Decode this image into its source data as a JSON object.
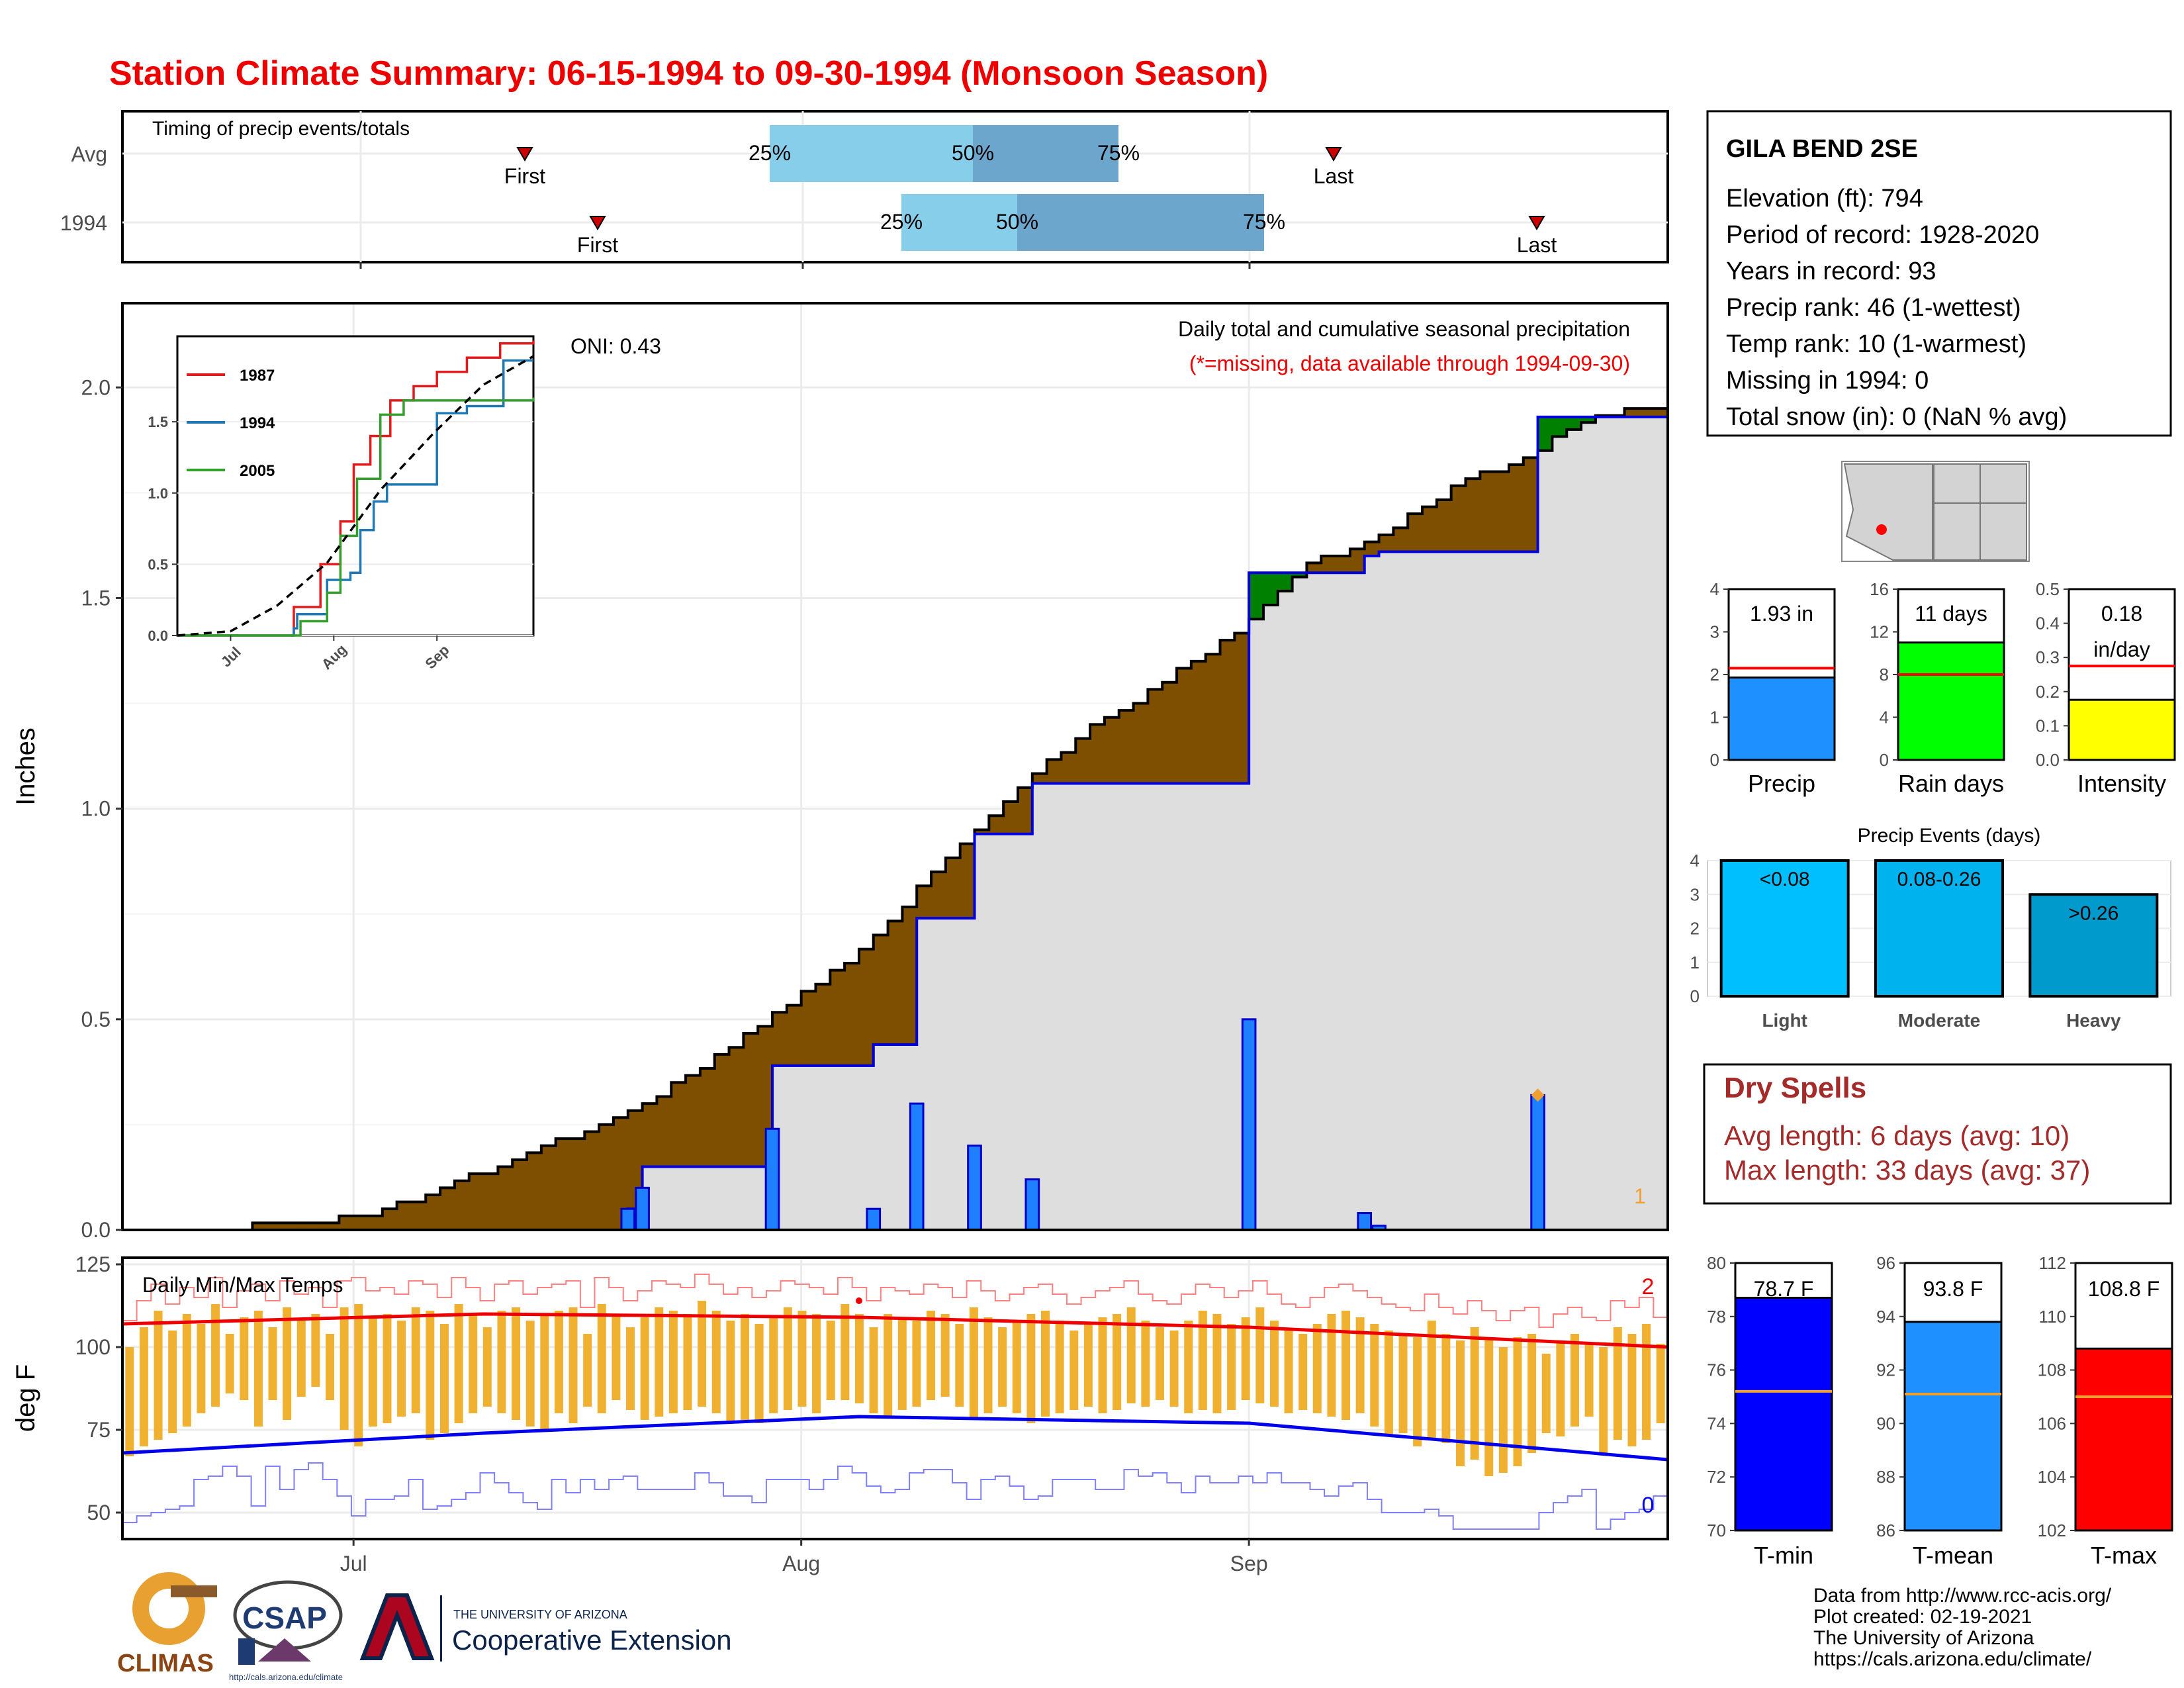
{
  "page": {
    "title": "Station Climate Summary: 06-15-1994 to 09-30-1994 (Monsoon Season)"
  },
  "colors": {
    "title": "#ee0000",
    "brown": "#7f4f00",
    "green": "#008000",
    "bar_blue": "#1e7fff",
    "gray_fill": "#dedede",
    "orange": "#f0b030",
    "light_blue": "#87ceeb",
    "mid_blue": "#6ca6cd",
    "dry_red": "#a52a2a"
  },
  "timing": {
    "label": "Timing of precip events/totals",
    "rows": [
      {
        "label": "Avg",
        "first": "First",
        "p25": "25%",
        "p50": "50%",
        "p75": "75%",
        "last": "Last"
      },
      {
        "label": "1994",
        "first": "First",
        "p25": "25%",
        "p50": "50%",
        "p75": "75%",
        "last": "Last"
      }
    ]
  },
  "station": {
    "name": "GILA BEND 2SE",
    "lines": [
      "Elevation (ft): 794",
      "Period of record: 1928-2020",
      "Years in record: 93",
      "Precip rank: 46 (1-wettest)",
      "Temp rank: 10 (1-warmest)",
      "Missing in 1994: 0",
      "Total snow (in): 0 (NaN % avg)"
    ]
  },
  "main": {
    "ylabel": "Inches",
    "oni": "ONI: 0.43",
    "caption": "Daily total and cumulative seasonal precipitation",
    "missing_note": "(*=missing, data available through 1994-09-30)",
    "missing_count": "1",
    "y_ticks": [
      "0.0",
      "0.5",
      "1.0",
      "1.5",
      "2.0"
    ]
  },
  "inset": {
    "legend": [
      "1987",
      "1994",
      "2005"
    ],
    "y_ticks": [
      "0.0",
      "0.5",
      "1.0",
      "1.5"
    ],
    "x_ticks": [
      "Jul",
      "Aug",
      "Sep"
    ]
  },
  "temps": {
    "label": "Daily Min/Max Temps",
    "ylabel": "deg F",
    "count_high": "2",
    "count_low": "0",
    "y_ticks": [
      "50",
      "75",
      "100",
      "125"
    ],
    "x_ticks": [
      "Jul",
      "Aug",
      "Sep"
    ]
  },
  "summary_bars": [
    {
      "name": "Precip",
      "value_label": "1.93 in",
      "value": 1.93,
      "avg": 2.15,
      "ticks": [
        "0",
        "1",
        "2",
        "3",
        "4"
      ],
      "color": "#1e90ff"
    },
    {
      "name": "Rain days",
      "value_label": "11 days",
      "value": 11,
      "avg": 8,
      "ticks": [
        "0",
        "4",
        "8",
        "12",
        "16"
      ],
      "color": "#00ff00"
    },
    {
      "name": "Intensity",
      "value_label": "0.18",
      "value_label2": "in/day",
      "value": 0.176,
      "avg": 0.275,
      "ticks": [
        "0.0",
        "0.1",
        "0.2",
        "0.3",
        "0.4",
        "0.5"
      ],
      "color": "#ffff00"
    }
  ],
  "events": {
    "title": "Precip Events (days)",
    "ticks": [
      "0",
      "1",
      "2",
      "3",
      "4"
    ],
    "bars": [
      {
        "label": "<0.08",
        "name": "Light",
        "value": 4,
        "color": "#00bfff"
      },
      {
        "label": "0.08-0.26",
        "name": "Moderate",
        "value": 4,
        "color": "#00b2ee"
      },
      {
        "label": ">0.26",
        "name": "Heavy",
        "value": 3,
        "color": "#009acd"
      }
    ]
  },
  "dry_spells": {
    "title": "Dry Spells",
    "avg_line": "Avg length: 6 days (avg: 10)",
    "max_line": "Max length: 33 days (avg: 37)"
  },
  "temp_bars": [
    {
      "name": "T-min",
      "value_label": "78.7 F",
      "value": 78.7,
      "avg": 75.2,
      "ticks": [
        "70",
        "72",
        "74",
        "76",
        "78",
        "80"
      ],
      "range": [
        70,
        80
      ],
      "color": "#0000ff"
    },
    {
      "name": "T-mean",
      "value_label": "93.8 F",
      "value": 93.8,
      "avg": 91.1,
      "ticks": [
        "86",
        "88",
        "90",
        "92",
        "94",
        "96"
      ],
      "range": [
        86,
        96
      ],
      "color": "#1e90ff"
    },
    {
      "name": "T-max",
      "value_label": "108.8 F",
      "value": 108.8,
      "avg": 107.0,
      "ticks": [
        "102",
        "104",
        "106",
        "108",
        "110",
        "112"
      ],
      "range": [
        102,
        112
      ],
      "color": "#ff0000"
    }
  ],
  "logos": {
    "climas": "CLIMAS",
    "csap": "CSAP",
    "csap_url": "http://cals.arizona.edu/climate",
    "ua_small": "THE UNIVERSITY OF ARIZONA",
    "ua_big": "Cooperative Extension"
  },
  "footer": {
    "lines": [
      "Data from http://www.rcc-acis.org/",
      "Plot created: 02-19-2021",
      "The University of Arizona",
      "https://cals.arizona.edu/climate/"
    ]
  },
  "chart_data": [
    {
      "type": "line",
      "title": "Daily total and cumulative seasonal precipitation",
      "ylabel": "Inches",
      "xlim": [
        "1994-06-15",
        "1994-09-30"
      ],
      "ylim": [
        0,
        2.2
      ],
      "grid": true,
      "series": [
        {
          "name": "1994 daily precip",
          "kind": "bar",
          "x": [
            "1994-07-20",
            "1994-07-21",
            "1994-07-30",
            "1994-08-06",
            "1994-08-09",
            "1994-08-13",
            "1994-08-17",
            "1994-09-01",
            "1994-09-09",
            "1994-09-10",
            "1994-09-21"
          ],
          "values": [
            0.05,
            0.1,
            0.24,
            0.05,
            0.3,
            0.2,
            0.12,
            0.5,
            0.04,
            0.01,
            0.32
          ]
        },
        {
          "name": "1994 cumulative",
          "x": [
            "1994-06-15",
            "1994-07-20",
            "1994-07-21",
            "1994-07-30",
            "1994-08-06",
            "1994-08-09",
            "1994-08-13",
            "1994-08-17",
            "1994-09-01",
            "1994-09-09",
            "1994-09-10",
            "1994-09-21",
            "1994-09-30"
          ],
          "values": [
            0,
            0.05,
            0.15,
            0.39,
            0.44,
            0.74,
            0.94,
            1.06,
            1.56,
            1.6,
            1.61,
            1.93,
            1.93
          ]
        },
        {
          "name": "Average cumulative",
          "x": [
            "1994-06-15",
            "1994-06-25",
            "1994-07-01",
            "1994-07-05",
            "1994-07-10",
            "1994-07-15",
            "1994-07-20",
            "1994-07-25",
            "1994-07-30",
            "1994-08-05",
            "1994-08-10",
            "1994-08-15",
            "1994-08-20",
            "1994-08-25",
            "1994-08-31",
            "1994-09-05",
            "1994-09-10",
            "1994-09-15",
            "1994-09-20",
            "1994-09-25",
            "1994-09-30"
          ],
          "values": [
            0,
            0.01,
            0.03,
            0.07,
            0.14,
            0.21,
            0.28,
            0.39,
            0.51,
            0.66,
            0.85,
            1.02,
            1.17,
            1.28,
            1.42,
            1.58,
            1.65,
            1.76,
            1.84,
            1.93,
            1.96
          ]
        }
      ],
      "annotations": [
        "ONI: 0.43",
        "(*=missing, data available through 1994-09-30)",
        "1"
      ]
    },
    {
      "type": "line",
      "title": "",
      "legend": "top-left",
      "x_ticks": [
        "Jul",
        "Aug",
        "Sep"
      ],
      "ylim": [
        0,
        2.1
      ],
      "series": [
        {
          "name": "1987",
          "x": [
            "1994-06-15",
            "1994-07-20",
            "1994-07-28",
            "1994-08-03",
            "1994-08-07",
            "1994-08-12",
            "1994-08-18",
            "1994-08-25",
            "1994-09-01",
            "1994-09-10",
            "1994-09-20",
            "1994-09-30"
          ],
          "values": [
            0,
            0.2,
            0.5,
            0.8,
            1.2,
            1.4,
            1.65,
            1.75,
            1.85,
            1.95,
            2.05,
            2.07
          ]
        },
        {
          "name": "1994",
          "x": [
            "1994-06-15",
            "1994-07-20",
            "1994-07-21",
            "1994-07-30",
            "1994-08-06",
            "1994-08-09",
            "1994-08-13",
            "1994-08-17",
            "1994-09-01",
            "1994-09-10",
            "1994-09-21",
            "1994-09-30"
          ],
          "values": [
            0,
            0.05,
            0.15,
            0.39,
            0.44,
            0.74,
            0.94,
            1.06,
            1.56,
            1.61,
            1.93,
            1.93
          ]
        },
        {
          "name": "2005",
          "x": [
            "1994-06-15",
            "1994-07-22",
            "1994-07-30",
            "1994-08-03",
            "1994-08-08",
            "1994-08-15",
            "1994-08-22",
            "1994-09-30"
          ],
          "values": [
            0,
            0.1,
            0.3,
            0.7,
            1.1,
            1.55,
            1.65,
            1.67
          ]
        },
        {
          "name": "Average",
          "x": [
            "1994-06-15",
            "1994-07-01",
            "1994-07-15",
            "1994-07-30",
            "1994-08-15",
            "1994-08-31",
            "1994-09-15",
            "1994-09-30"
          ],
          "values": [
            0,
            0.03,
            0.21,
            0.51,
            1.02,
            1.42,
            1.76,
            1.96
          ]
        }
      ]
    },
    {
      "type": "bar",
      "title": "Daily Min/Max Temps",
      "ylabel": "deg F",
      "ylim": [
        42,
        127
      ],
      "series": [
        {
          "name": "Daily max",
          "values": [
            100,
            106,
            111,
            105,
            110,
            107,
            113,
            104,
            109,
            111,
            106,
            112,
            108,
            110,
            104,
            112,
            113,
            109,
            110,
            108,
            112,
            111,
            107,
            113,
            110,
            106,
            111,
            112,
            108,
            110,
            111,
            112,
            104,
            113,
            110,
            106,
            109,
            112,
            111,
            110,
            114,
            111,
            108,
            110,
            107,
            109,
            112,
            111,
            110,
            108,
            113,
            110,
            106,
            110,
            109,
            108,
            111,
            110,
            107,
            112,
            109,
            106,
            108,
            110,
            111,
            108,
            105,
            107,
            109,
            110,
            112,
            108,
            106,
            105,
            108,
            111,
            110,
            107,
            109,
            112,
            108,
            105,
            104,
            107,
            110,
            111,
            109,
            107,
            105,
            104,
            103,
            108,
            104,
            102,
            106,
            103,
            100,
            103,
            104,
            98,
            102,
            104,
            101,
            100,
            106,
            104,
            107,
            101
          ]
        },
        {
          "name": "Daily min",
          "values": [
            67,
            70,
            72,
            74,
            76,
            80,
            82,
            86,
            84,
            76,
            84,
            78,
            85,
            88,
            84,
            75,
            70,
            76,
            77,
            79,
            80,
            72,
            74,
            77,
            80,
            82,
            80,
            78,
            76,
            75,
            80,
            77,
            82,
            80,
            84,
            81,
            78,
            79,
            80,
            81,
            82,
            80,
            77,
            78,
            77,
            80,
            81,
            82,
            80,
            84,
            84,
            83,
            80,
            79,
            81,
            82,
            84,
            85,
            82,
            78,
            80,
            82,
            80,
            77,
            79,
            80,
            81,
            82,
            80,
            81,
            83,
            82,
            84,
            82,
            80,
            81,
            80,
            81,
            84,
            83,
            82,
            80,
            81,
            80,
            79,
            78,
            80,
            76,
            73,
            74,
            70,
            72,
            71,
            64,
            66,
            61,
            62,
            64,
            68,
            74,
            73,
            76,
            79,
            68,
            72,
            70,
            72,
            77
          ]
        },
        {
          "name": "Avg max",
          "x": [
            "1994-06-15",
            "1994-07-10",
            "1994-08-05",
            "1994-09-01",
            "1994-09-30"
          ],
          "values": [
            107,
            110,
            109,
            106,
            100
          ]
        },
        {
          "name": "Avg min",
          "x": [
            "1994-06-15",
            "1994-07-10",
            "1994-08-05",
            "1994-09-01",
            "1994-09-30"
          ],
          "values": [
            68,
            74,
            79,
            77,
            66
          ]
        }
      ],
      "annotations": [
        "2",
        "0"
      ]
    },
    {
      "type": "bar",
      "categories": [
        "Precip",
        "Rain days",
        "Intensity"
      ],
      "values": [
        1.93,
        11,
        0.18
      ],
      "averages": [
        2.15,
        8,
        0.275
      ],
      "units": [
        "in",
        "days",
        "in/day"
      ]
    },
    {
      "type": "bar",
      "title": "Precip Events (days)",
      "categories": [
        "Light",
        "Moderate",
        "Heavy"
      ],
      "labels": [
        "<0.08",
        "0.08-0.26",
        ">0.26"
      ],
      "values": [
        4,
        4,
        3
      ],
      "ylim": [
        0,
        4
      ]
    },
    {
      "type": "bar",
      "categories": [
        "T-min",
        "T-mean",
        "T-max"
      ],
      "values": [
        78.7,
        93.8,
        108.8
      ],
      "averages": [
        75.2,
        91.1,
        107.0
      ],
      "units": [
        "F",
        "F",
        "F"
      ]
    }
  ]
}
